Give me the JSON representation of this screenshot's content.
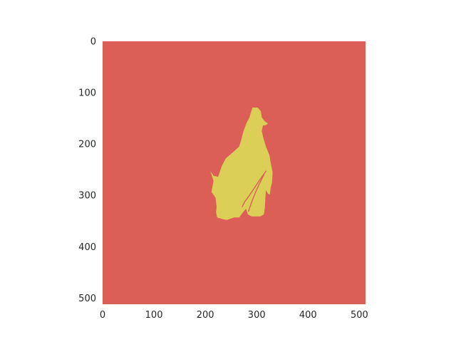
{
  "chart_data": {
    "type": "heatmap",
    "title": "",
    "xlabel": "",
    "ylabel": "",
    "image_size": [
      512,
      512
    ],
    "xlim": [
      0,
      512
    ],
    "ylim": [
      512,
      0
    ],
    "grid": false,
    "x_ticks": [
      0,
      100,
      200,
      300,
      400,
      500
    ],
    "y_ticks": [
      0,
      100,
      200,
      300,
      400,
      500
    ],
    "x_tick_labels": [
      "0",
      "100",
      "200",
      "300",
      "400",
      "500"
    ],
    "y_tick_labels": [
      "0",
      "100",
      "200",
      "300",
      "400",
      "500"
    ],
    "colors": {
      "background_class": "#db5f57",
      "object_class": "#dbcf58"
    },
    "mask_outline": [
      [
        292,
        129
      ],
      [
        302,
        129
      ],
      [
        308,
        136
      ],
      [
        310,
        148
      ],
      [
        316,
        156
      ],
      [
        322,
        160
      ],
      [
        318,
        163
      ],
      [
        312,
        164
      ],
      [
        310,
        175
      ],
      [
        313,
        188
      ],
      [
        318,
        205
      ],
      [
        325,
        222
      ],
      [
        327,
        235
      ],
      [
        331,
        255
      ],
      [
        330,
        275
      ],
      [
        327,
        286
      ],
      [
        326,
        298
      ],
      [
        322,
        297
      ],
      [
        318,
        290
      ],
      [
        317,
        303
      ],
      [
        316,
        325
      ],
      [
        314,
        337
      ],
      [
        307,
        341
      ],
      [
        290,
        341
      ],
      [
        283,
        337
      ],
      [
        279,
        326
      ],
      [
        272,
        335
      ],
      [
        266,
        343
      ],
      [
        256,
        343
      ],
      [
        242,
        348
      ],
      [
        233,
        346
      ],
      [
        223,
        343
      ],
      [
        221,
        333
      ],
      [
        222,
        322
      ],
      [
        220,
        305
      ],
      [
        212,
        293
      ],
      [
        216,
        272
      ],
      [
        210,
        253
      ],
      [
        216,
        262
      ],
      [
        225,
        264
      ],
      [
        232,
        243
      ],
      [
        240,
        228
      ],
      [
        256,
        214
      ],
      [
        266,
        205
      ],
      [
        270,
        192
      ],
      [
        274,
        176
      ],
      [
        280,
        160
      ],
      [
        286,
        148
      ],
      [
        289,
        138
      ]
    ],
    "mask_cracks": [
      [
        [
          318,
          253
        ],
        [
          306,
          270
        ],
        [
          296,
          285
        ],
        [
          286,
          300
        ],
        [
          277,
          312
        ],
        [
          272,
          322
        ]
      ],
      [
        [
          314,
          260
        ],
        [
          305,
          278
        ],
        [
          297,
          296
        ],
        [
          290,
          314
        ],
        [
          284,
          331
        ]
      ]
    ]
  }
}
